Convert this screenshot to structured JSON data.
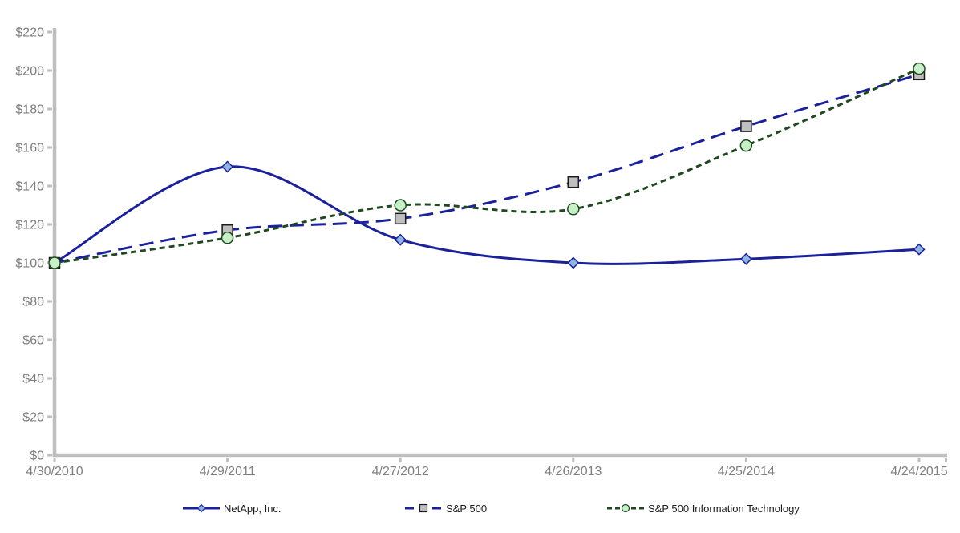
{
  "chart_data": {
    "type": "line",
    "categories": [
      "4/30/2010",
      "4/29/2011",
      "4/27/2012",
      "4/26/2013",
      "4/25/2014",
      "4/24/2015"
    ],
    "series": [
      {
        "name": "NetApp, Inc.",
        "values": [
          100,
          150,
          112,
          100,
          102,
          107
        ],
        "color": "#1b219b",
        "dash": "",
        "legend_dash": "",
        "marker": "diamond",
        "marker_fill": "#8db4e2",
        "marker_stroke": "#1b219b"
      },
      {
        "name": "S&P 500",
        "values": [
          100,
          117,
          123,
          142,
          171,
          198
        ],
        "color": "#1b219b",
        "dash": "18 9",
        "legend_dash": "11 6",
        "marker": "square",
        "marker_fill": "#bfbfbf",
        "marker_stroke": "#1a1a1a"
      },
      {
        "name": "S&P 500 Information Technology",
        "values": [
          100,
          113,
          130,
          128,
          161,
          201
        ],
        "color": "#1f4a1f",
        "dash": "7 5",
        "legend_dash": "6 4",
        "marker": "circle",
        "marker_fill": "#c8f0c8",
        "marker_stroke": "#1f4a1f"
      }
    ],
    "ylim": [
      0,
      220
    ],
    "ytick_step": 20,
    "ytick_prefix": "$",
    "xlabel": "",
    "ylabel": "",
    "title": "",
    "grid": false,
    "legend_position": "bottom",
    "axis_color": "#bfbfbf",
    "tick_label_color": "#7f7f7f",
    "legend_text_color": "#1a1a1a",
    "background_color": "#ffffff"
  }
}
